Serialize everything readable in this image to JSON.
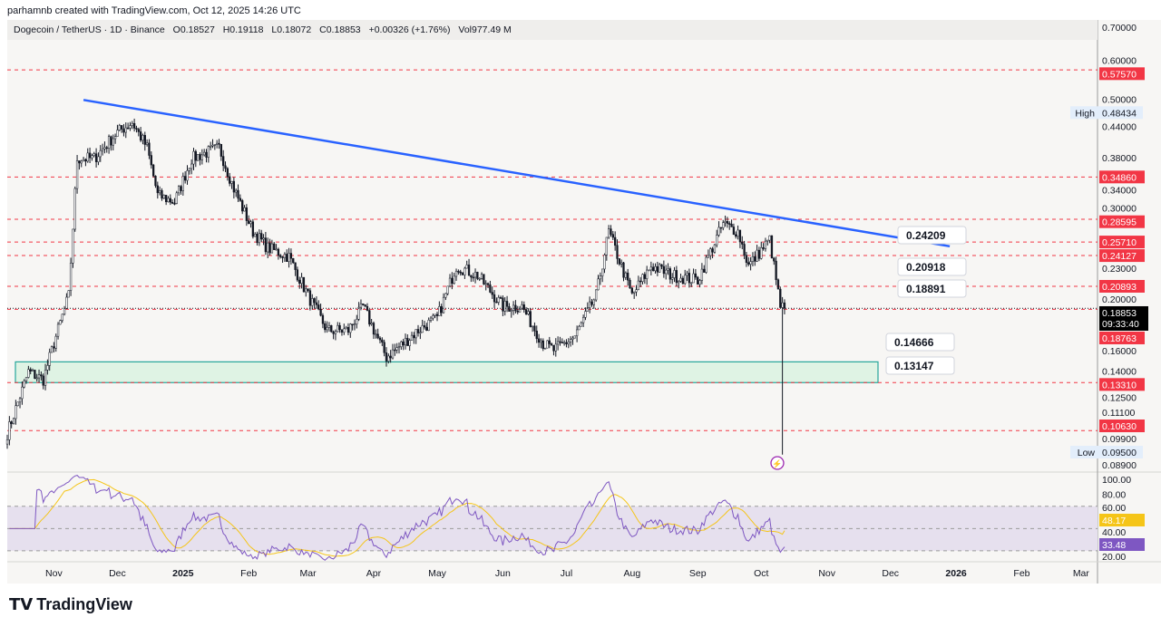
{
  "credit": "parhamnb created with TradingView.com, Oct 12, 2025 14:26 UTC",
  "legend": {
    "symbol": "Dogecoin / TetherUS · 1D · Binance",
    "open": "O0.18527",
    "high": "H0.19118",
    "low": "L0.18072",
    "close": "C0.18853",
    "change": "+0.00326 (+1.76%)",
    "volume": "Vol977.49 M"
  },
  "logo": "TradingView",
  "colors": {
    "level": "#f23645",
    "trend": "#2962ff",
    "zone": "#26a69a",
    "rsi": "#7e57c2",
    "rsi_ma": "#f5c518"
  },
  "chart_data": {
    "type": "candlestick",
    "title": "Dogecoin / TetherUS · 1D · Binance",
    "scale": "log",
    "ylim": [
      0.089,
      0.7
    ],
    "price_ticks": [
      "0.70000",
      "0.60000",
      "0.50000",
      "0.44000",
      "0.38000",
      "0.34000",
      "0.30000",
      "0.23000",
      "0.20000",
      "0.16000",
      "0.14000",
      "0.12500",
      "0.11100",
      "0.09900",
      "0.08900"
    ],
    "time_ticks": [
      [
        "Nov",
        "2024-11-01"
      ],
      [
        "Dec",
        "2024-12-01"
      ],
      [
        "2025",
        "2025-01-01"
      ],
      [
        "Feb",
        "2025-02-01"
      ],
      [
        "Mar",
        "2025-03-01"
      ],
      [
        "Apr",
        "2025-04-01"
      ],
      [
        "May",
        "2025-05-01"
      ],
      [
        "Jun",
        "2025-06-01"
      ],
      [
        "Jul",
        "2025-07-01"
      ],
      [
        "Aug",
        "2025-08-01"
      ],
      [
        "Sep",
        "2025-09-01"
      ],
      [
        "Oct",
        "2025-10-01"
      ],
      [
        "Nov",
        "2025-11-01"
      ],
      [
        "Dec",
        "2025-12-01"
      ],
      [
        "2026",
        "2026-01-01"
      ],
      [
        "Feb",
        "2026-02-01"
      ],
      [
        "Mar",
        "2026-03-01"
      ]
    ],
    "close_keypoints": [
      [
        "2024-10-10",
        0.105
      ],
      [
        "2024-10-20",
        0.14
      ],
      [
        "2024-10-27",
        0.135
      ],
      [
        "2024-11-01",
        0.16
      ],
      [
        "2024-11-08",
        0.2
      ],
      [
        "2024-11-12",
        0.38
      ],
      [
        "2024-11-20",
        0.38
      ],
      [
        "2024-12-01",
        0.43
      ],
      [
        "2024-12-08",
        0.45
      ],
      [
        "2024-12-15",
        0.4
      ],
      [
        "2024-12-20",
        0.32
      ],
      [
        "2024-12-28",
        0.31
      ],
      [
        "2025-01-05",
        0.38
      ],
      [
        "2025-01-18",
        0.4
      ],
      [
        "2025-01-25",
        0.33
      ],
      [
        "2025-02-03",
        0.27
      ],
      [
        "2025-02-10",
        0.25
      ],
      [
        "2025-02-20",
        0.24
      ],
      [
        "2025-03-01",
        0.2
      ],
      [
        "2025-03-10",
        0.17
      ],
      [
        "2025-03-20",
        0.17
      ],
      [
        "2025-03-27",
        0.19
      ],
      [
        "2025-04-07",
        0.15
      ],
      [
        "2025-04-15",
        0.16
      ],
      [
        "2025-04-22",
        0.17
      ],
      [
        "2025-05-01",
        0.18
      ],
      [
        "2025-05-10",
        0.23
      ],
      [
        "2025-05-20",
        0.22
      ],
      [
        "2025-06-01",
        0.19
      ],
      [
        "2025-06-10",
        0.19
      ],
      [
        "2025-06-20",
        0.16
      ],
      [
        "2025-06-25",
        0.155
      ],
      [
        "2025-07-05",
        0.165
      ],
      [
        "2025-07-15",
        0.2
      ],
      [
        "2025-07-21",
        0.27
      ],
      [
        "2025-08-01",
        0.2
      ],
      [
        "2025-08-10",
        0.23
      ],
      [
        "2025-08-20",
        0.22
      ],
      [
        "2025-09-01",
        0.215
      ],
      [
        "2025-09-13",
        0.28
      ],
      [
        "2025-09-20",
        0.27
      ],
      [
        "2025-09-25",
        0.23
      ],
      [
        "2025-10-05",
        0.26
      ],
      [
        "2025-10-10",
        0.19
      ],
      [
        "2025-10-12",
        0.18853
      ]
    ],
    "last_price": {
      "value": "0.18853",
      "countdown": "09:33:40"
    },
    "high_marker": {
      "label": "High",
      "value": "0.48434"
    },
    "low_marker": {
      "label": "Low",
      "value": "0.09500"
    },
    "levels": [
      "0.57570",
      "0.34860",
      "0.28595",
      "0.25710",
      "0.24127",
      "0.20893",
      "0.18763",
      "0.13310",
      "0.10630"
    ],
    "trendline": {
      "from": [
        "2024-11-15",
        0.5
      ],
      "to": [
        "2025-12-29",
        0.252
      ]
    },
    "zone": {
      "top": 0.14666,
      "bottom": 0.1331
    },
    "callouts": [
      "0.24209",
      "0.20918",
      "0.18891",
      "0.14666",
      "0.13147"
    ],
    "rsi": {
      "ticks": [
        "100.00",
        "80.00",
        "60.00",
        "40.00",
        "20.00"
      ],
      "upper": 70,
      "middle": 50,
      "lower": 30,
      "value": "33.48",
      "ma_value": "48.17"
    }
  }
}
